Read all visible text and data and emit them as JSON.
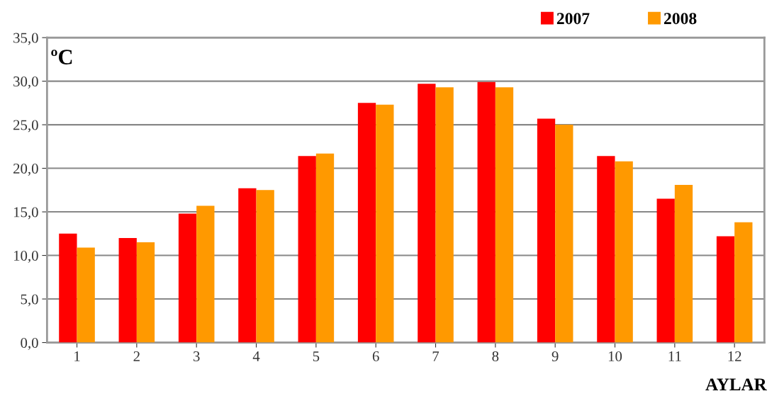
{
  "chart_data": {
    "type": "bar",
    "ylabel": "ºC",
    "xlabel": "AYLAR",
    "categories": [
      "1",
      "2",
      "3",
      "4",
      "5",
      "6",
      "7",
      "8",
      "9",
      "10",
      "11",
      "12"
    ],
    "series": [
      {
        "name": "2007",
        "color": "#ff0000",
        "values": [
          12.5,
          12.0,
          14.8,
          17.7,
          21.4,
          27.5,
          29.7,
          29.9,
          25.7,
          21.4,
          16.5,
          12.2
        ]
      },
      {
        "name": "2008",
        "color": "#ff9900",
        "values": [
          10.9,
          11.5,
          15.7,
          17.5,
          21.7,
          27.3,
          29.3,
          29.3,
          25.0,
          20.8,
          18.1,
          13.8
        ]
      }
    ],
    "ylim": [
      0,
      35
    ],
    "yticks": [
      {
        "value": 0,
        "label": "0,0"
      },
      {
        "value": 5,
        "label": "5,0"
      },
      {
        "value": 10,
        "label": "10,0"
      },
      {
        "value": 15,
        "label": "15,0"
      },
      {
        "value": 20,
        "label": "20,0"
      },
      {
        "value": 25,
        "label": "25,0"
      },
      {
        "value": 30,
        "label": "30,0"
      },
      {
        "value": 35,
        "label": "35,0"
      }
    ],
    "grid": "y",
    "legend": "top right"
  }
}
